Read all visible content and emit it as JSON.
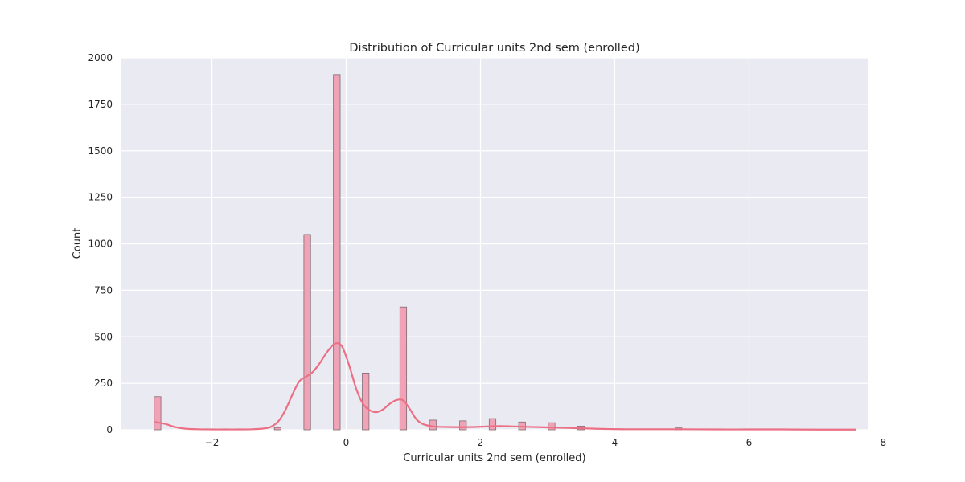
{
  "chart_data": {
    "type": "bar",
    "title": "Distribution of Curricular units 2nd sem (enrolled)",
    "xlabel": "Curricular units 2nd sem (enrolled)",
    "ylabel": "Count",
    "xlim": [
      -3.36,
      7.78
    ],
    "ylim": [
      0,
      2000
    ],
    "x_ticks": [
      -2,
      0,
      2,
      4,
      6,
      8
    ],
    "x_tick_labels": [
      "−2",
      "0",
      "2",
      "4",
      "6",
      "8"
    ],
    "y_ticks": [
      0,
      250,
      500,
      750,
      1000,
      1250,
      1500,
      1750,
      2000
    ],
    "y_tick_labels": [
      "0",
      "250",
      "500",
      "750",
      "1000",
      "1250",
      "1500",
      "1750",
      "2000"
    ],
    "bin_width": 0.1,
    "bins": [
      {
        "x": -2.81,
        "count": 178
      },
      {
        "x": -1.02,
        "count": 12
      },
      {
        "x": -0.58,
        "count": 1050
      },
      {
        "x": -0.14,
        "count": 1910
      },
      {
        "x": 0.29,
        "count": 305
      },
      {
        "x": 0.85,
        "count": 660
      },
      {
        "x": 1.29,
        "count": 52
      },
      {
        "x": 1.74,
        "count": 48
      },
      {
        "x": 2.18,
        "count": 60
      },
      {
        "x": 2.62,
        "count": 42
      },
      {
        "x": 3.06,
        "count": 38
      },
      {
        "x": 3.5,
        "count": 20
      },
      {
        "x": 4.95,
        "count": 10
      },
      {
        "x": 5.85,
        "count": 2
      }
    ],
    "kde": {
      "x": [
        -2.85,
        -2.7,
        -2.55,
        -2.4,
        -2.2,
        -2.0,
        -1.8,
        -1.6,
        -1.4,
        -1.2,
        -1.1,
        -1.0,
        -0.9,
        -0.8,
        -0.7,
        -0.6,
        -0.5,
        -0.4,
        -0.3,
        -0.2,
        -0.12,
        -0.05,
        0.05,
        0.15,
        0.25,
        0.35,
        0.45,
        0.55,
        0.65,
        0.75,
        0.85,
        0.95,
        1.05,
        1.15,
        1.3,
        1.5,
        1.7,
        1.9,
        2.1,
        2.3,
        2.5,
        2.7,
        2.9,
        3.1,
        3.3,
        3.5,
        3.7,
        3.9,
        4.2,
        4.5,
        5.0,
        5.5,
        6.0,
        6.5,
        7.0,
        7.6
      ],
      "y": [
        42,
        32,
        15,
        6,
        3,
        2,
        2,
        2,
        3,
        8,
        20,
        50,
        110,
        190,
        260,
        285,
        310,
        355,
        410,
        455,
        465,
        440,
        340,
        220,
        140,
        105,
        95,
        110,
        140,
        160,
        158,
        110,
        55,
        30,
        18,
        15,
        14,
        15,
        18,
        20,
        18,
        16,
        14,
        12,
        10,
        8,
        6,
        4,
        3,
        3,
        3,
        2,
        2,
        2,
        1,
        1
      ]
    },
    "colors": {
      "bar_fill": "#f0a3b6",
      "bar_edge": "#7f6a6f",
      "kde_line": "#ec7085",
      "plot_bg": "#eaeaf2",
      "grid": "#ffffff"
    },
    "grid": true
  }
}
